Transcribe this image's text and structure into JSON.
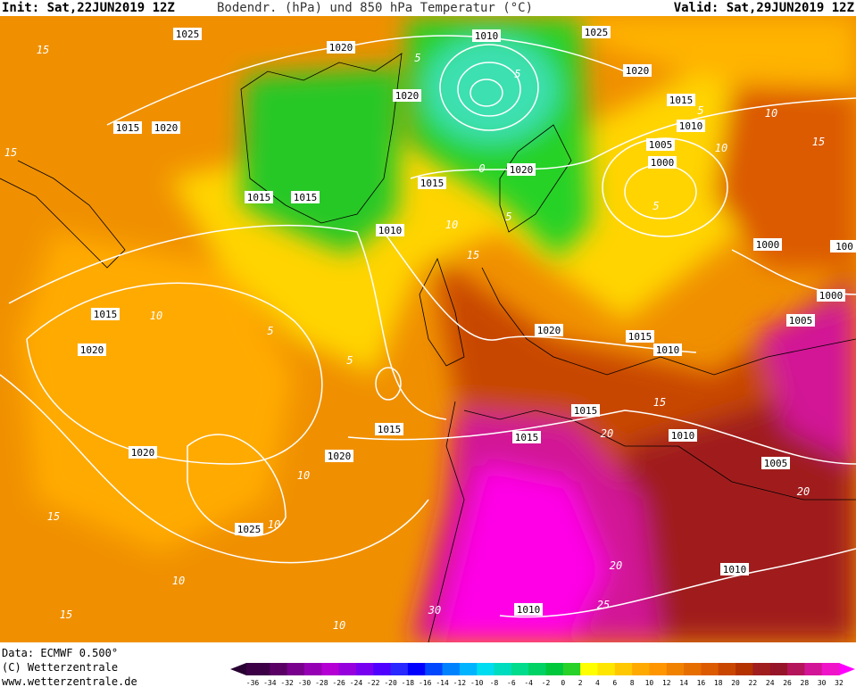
{
  "header": {
    "init": "Init: Sat,22JUN2019 12Z",
    "title": "Bodendr. (hPa) und 850 hPa Temperatur (°C)",
    "valid": "Valid: Sat,29JUN2019 12Z"
  },
  "isobar_labels": [
    1025,
    1020,
    1010,
    1025,
    1020,
    1020,
    1015,
    1010,
    1015,
    1020,
    1005,
    1000,
    1015,
    1020,
    1015,
    1015,
    1010,
    1000,
    100,
    1000,
    1005,
    1015,
    1020,
    1020,
    1015,
    1010,
    1015,
    1015,
    1015,
    1010,
    1020,
    1020,
    1005,
    1025,
    1010,
    1010
  ],
  "temperature_labels": [
    15,
    10,
    15,
    5,
    5,
    10,
    0,
    5,
    5,
    10,
    15,
    5,
    10,
    5,
    5,
    15,
    20,
    10,
    10,
    15,
    10,
    15,
    20,
    25,
    30,
    20,
    10,
    15
  ],
  "footer": {
    "data": "Data: ECMWF  0.500°",
    "copyright": "(C) Wetterzentrale",
    "url": "www.wetterzentrale.de"
  },
  "colorbar": {
    "ticks": [
      -36,
      -34,
      -32,
      -30,
      -28,
      -26,
      -24,
      -22,
      -20,
      -18,
      -16,
      -14,
      -12,
      -10,
      -8,
      -6,
      -4,
      -2,
      0,
      2,
      4,
      6,
      8,
      10,
      12,
      14,
      16,
      18,
      20,
      22,
      24,
      26,
      28,
      30,
      32
    ],
    "colors": [
      "#3c0046",
      "#5a0064",
      "#78008c",
      "#9600b4",
      "#b400d2",
      "#9600dc",
      "#7800f0",
      "#5000ff",
      "#2828ff",
      "#0000ff",
      "#0046ff",
      "#0082ff",
      "#00b4ff",
      "#00dcf0",
      "#00dcbe",
      "#00dc8c",
      "#00d264",
      "#00c83c",
      "#28d228",
      "#ffff00",
      "#ffe600",
      "#ffc800",
      "#ffaa00",
      "#ff9600",
      "#f08200",
      "#e66e00",
      "#dc5a00",
      "#c84600",
      "#b43200",
      "#a01e1e",
      "#961428",
      "#b4145a",
      "#d21496",
      "#f014c8"
    ]
  }
}
